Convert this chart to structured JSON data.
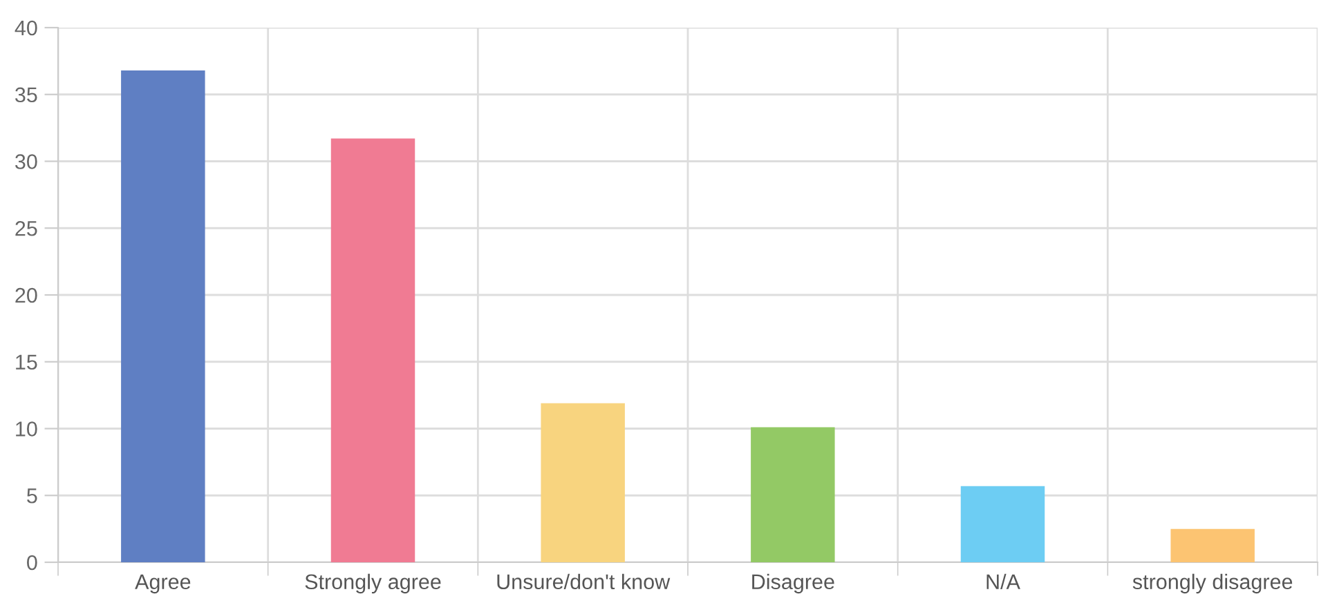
{
  "chart_data": {
    "type": "bar",
    "categories": [
      "Agree",
      "Strongly agree",
      "Unsure/don't know",
      "Disagree",
      "N/A",
      "strongly disagree"
    ],
    "values": [
      36.8,
      31.7,
      11.9,
      10.1,
      5.7,
      2.5
    ],
    "colors": [
      "#5f7fc3",
      "#f07b93",
      "#f8d47f",
      "#93c965",
      "#6dcdf3",
      "#fcc472"
    ],
    "ylim": [
      0,
      40
    ],
    "yticks": [
      0,
      5,
      10,
      15,
      20,
      25,
      30,
      35,
      40
    ],
    "grid": true
  }
}
